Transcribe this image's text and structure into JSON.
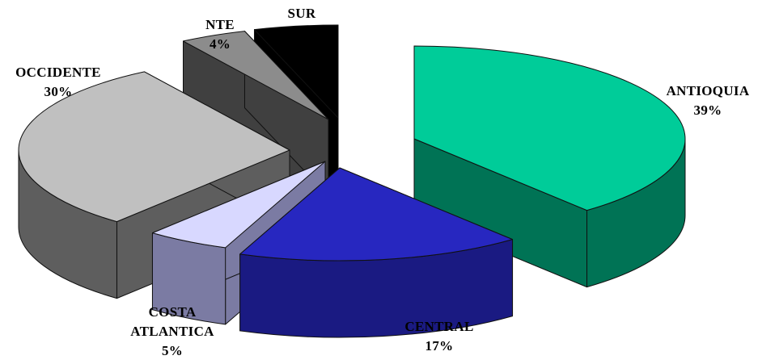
{
  "chart_data": {
    "type": "pie",
    "title": "",
    "style": "3d-exploded",
    "slices": [
      {
        "label_lines": [
          "ANTIOQUIA"
        ],
        "value": 39,
        "value_label": "39%",
        "color": "#00CC99",
        "side_color": "#007355"
      },
      {
        "label_lines": [
          "CENTRAL"
        ],
        "value": 17,
        "value_label": "17%",
        "color": "#2727C0",
        "side_color": "#1A1A82"
      },
      {
        "label_lines": [
          "COSTA",
          "ATLANTICA"
        ],
        "value": 5,
        "value_label": "5%",
        "color": "#D8D8FF",
        "side_color": "#7B7BA3"
      },
      {
        "label_lines": [
          "OCCIDENTE"
        ],
        "value": 30,
        "value_label": "30%",
        "color": "#C0C0C0",
        "side_color": "#5E5E5E"
      },
      {
        "label_lines": [
          "NTE"
        ],
        "value": 4,
        "value_label": "4%",
        "color": "#8C8C8C",
        "side_color": "#404040"
      },
      {
        "label_lines": [
          "SUR"
        ],
        "value": 5,
        "value_label": "5%",
        "color": "#000000",
        "side_color": "#000000"
      }
    ]
  }
}
